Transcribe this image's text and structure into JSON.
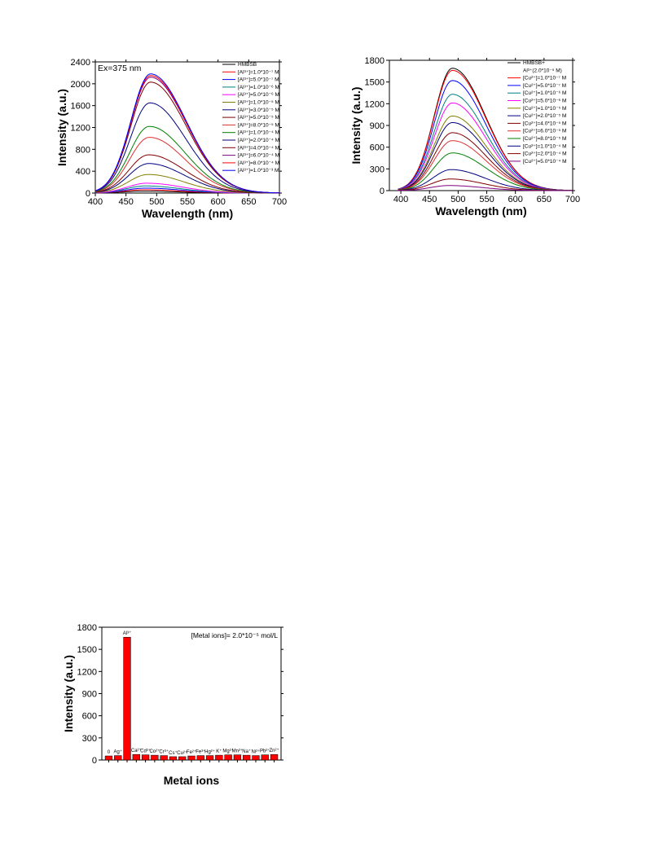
{
  "chart_data": [
    {
      "type": "line",
      "xlabel": "Wavelength (nm)",
      "ylabel": "Intensity (a.u.)",
      "xlim": [
        400,
        700
      ],
      "ylim": [
        0,
        2400
      ],
      "xticks": [
        400,
        450,
        500,
        550,
        600,
        650,
        700
      ],
      "yticks": [
        0,
        400,
        800,
        1200,
        1600,
        2000,
        2400
      ],
      "annotation": "Ex=375 nm",
      "legend_position": "top-right",
      "series": [
        {
          "name": "HMBSB",
          "color": "#000000",
          "peak_x": 478,
          "peak_y": 35
        },
        {
          "name": "[Al³⁺]=1.0*10⁻⁷ M",
          "color": "#ff0000",
          "peak_x": 480,
          "peak_y": 60
        },
        {
          "name": "[Al³⁺]=5.0*10⁻⁷ M",
          "color": "#0000ff",
          "peak_x": 482,
          "peak_y": 90
        },
        {
          "name": "[Al³⁺]=1.0*10⁻⁶ M",
          "color": "#008080",
          "peak_x": 482,
          "peak_y": 130
        },
        {
          "name": "[Al³⁺]=5.0*10⁻⁶ M",
          "color": "#ff00ff",
          "peak_x": 484,
          "peak_y": 180
        },
        {
          "name": "[Al³⁺]=1.0*10⁻⁵ M",
          "color": "#808000",
          "peak_x": 486,
          "peak_y": 340
        },
        {
          "name": "[Al³⁺]=3.0*10⁻⁵ M",
          "color": "#000080",
          "peak_x": 487,
          "peak_y": 540
        },
        {
          "name": "[Al³⁺]=5.0*10⁻⁵ M",
          "color": "#800000",
          "peak_x": 487,
          "peak_y": 700
        },
        {
          "name": "[Al³⁺]=8.0*10⁻⁵ M",
          "color": "#e03030",
          "peak_x": 488,
          "peak_y": 1020
        },
        {
          "name": "[Al³⁺]=1.0*10⁻⁴ M",
          "color": "#008000",
          "peak_x": 488,
          "peak_y": 1220
        },
        {
          "name": "[Al³⁺]=2.0*10⁻⁴ M",
          "color": "#000080",
          "peak_x": 489,
          "peak_y": 1650
        },
        {
          "name": "[Al³⁺]=4.0*10⁻⁴ M",
          "color": "#800000",
          "peak_x": 490,
          "peak_y": 2030
        },
        {
          "name": "[Al³⁺]=6.0*10⁻⁴ M",
          "color": "#800080",
          "peak_x": 490,
          "peak_y": 2120
        },
        {
          "name": "[Al³⁺]=8.0*10⁻⁴ M",
          "color": "#ff0000",
          "peak_x": 490,
          "peak_y": 2150
        },
        {
          "name": "[Al³⁺]=1.0*10⁻³ M",
          "color": "#0000ff",
          "peak_x": 490,
          "peak_y": 2180
        }
      ]
    },
    {
      "type": "line",
      "xlabel": "Wavelength (nm)",
      "ylabel": "Intensity (a.u.)",
      "xlim": [
        380,
        700
      ],
      "ylim": [
        0,
        1800
      ],
      "xticks": [
        400,
        450,
        500,
        550,
        600,
        650,
        700
      ],
      "yticks": [
        0,
        300,
        600,
        900,
        1200,
        1500,
        1800
      ],
      "legend_position": "top-right",
      "series": [
        {
          "name": "HMBSB+",
          "name2": "Al³⁺(2.0*10⁻⁵ M)",
          "color": "#000000",
          "peak_x": 490,
          "peak_y": 1690
        },
        {
          "name": "[Cu²⁺]=1.0*10⁻⁷ M",
          "color": "#ff0000",
          "peak_x": 490,
          "peak_y": 1660
        },
        {
          "name": "[Cu²⁺]=5.0*10⁻⁷ M",
          "color": "#0000ff",
          "peak_x": 490,
          "peak_y": 1520
        },
        {
          "name": "[Cu²⁺]=1.0*10⁻⁶ M",
          "color": "#008080",
          "peak_x": 490,
          "peak_y": 1330
        },
        {
          "name": "[Cu²⁺]=5.0*10⁻⁶ M",
          "color": "#ff00ff",
          "peak_x": 490,
          "peak_y": 1210
        },
        {
          "name": "[Cu²⁺]=1.0*10⁻⁵ M",
          "color": "#808000",
          "peak_x": 490,
          "peak_y": 1030
        },
        {
          "name": "[Cu²⁺]=2.0*10⁻⁵ M",
          "color": "#000080",
          "peak_x": 490,
          "peak_y": 940
        },
        {
          "name": "[Cu²⁺]=4.0*10⁻⁵ M",
          "color": "#800000",
          "peak_x": 490,
          "peak_y": 800
        },
        {
          "name": "[Cu²⁺]=6.0*10⁻⁵ M",
          "color": "#e03030",
          "peak_x": 490,
          "peak_y": 690
        },
        {
          "name": "[Cu²⁺]=8.0*10⁻⁵ M",
          "color": "#008000",
          "peak_x": 490,
          "peak_y": 520
        },
        {
          "name": "[Cu²⁺]=1.0*10⁻⁴ M",
          "color": "#000080",
          "peak_x": 488,
          "peak_y": 290
        },
        {
          "name": "[Cu²⁺]=2.0*10⁻⁴ M",
          "color": "#800000",
          "peak_x": 486,
          "peak_y": 160
        },
        {
          "name": "[Cu²⁺]=5.0*10⁻⁴ M",
          "color": "#800080",
          "peak_x": 484,
          "peak_y": 70
        }
      ]
    },
    {
      "type": "bar",
      "xlabel": "Metal ions",
      "ylabel": "Intensity (a.u.)",
      "ylim": [
        0,
        1800
      ],
      "yticks": [
        0,
        300,
        600,
        900,
        1200,
        1500,
        1800
      ],
      "annotation": "[Metal ions]= 2.0*10⁻⁵ mol/L",
      "bar_color": "#ff0000",
      "categories": [
        "0",
        "Ag⁺",
        "Al³⁺",
        "Ca²⁺",
        "Cd²⁺",
        "Co²⁺",
        "Cr³⁺",
        "Cs⁺",
        "Cu²⁺",
        "Fe²⁺",
        "Fe³⁺",
        "Hg²⁺",
        "K⁺",
        "Mg²⁺",
        "Mn²⁺",
        "Na⁺",
        "Ni²⁺",
        "Pb²⁺",
        "Zn²⁺"
      ],
      "values": [
        55,
        60,
        1665,
        75,
        70,
        65,
        60,
        45,
        45,
        55,
        60,
        60,
        65,
        70,
        70,
        65,
        60,
        70,
        75
      ]
    }
  ]
}
